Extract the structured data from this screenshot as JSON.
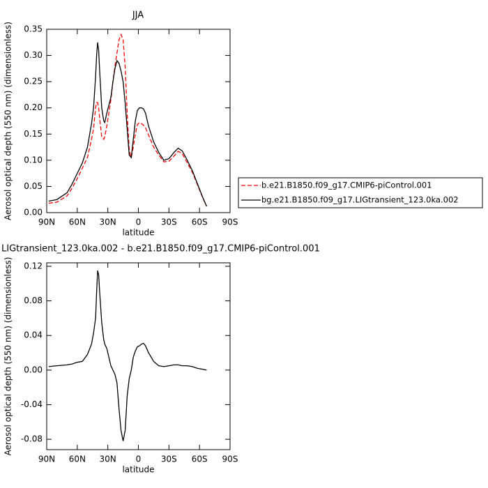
{
  "chart_data": [
    {
      "type": "line",
      "title": "JJA",
      "xlabel": "latitude",
      "ylabel": "Aerosol optical depth (550 nm) (dimensionless)",
      "x": [
        88,
        80,
        70,
        65,
        60,
        55,
        50,
        46,
        44,
        42,
        41,
        40,
        39,
        38,
        36,
        34,
        33,
        31,
        29,
        27,
        25,
        23,
        21,
        19,
        17,
        15,
        13,
        11,
        9,
        7,
        5,
        3,
        1,
        -1,
        -3,
        -5,
        -7,
        -10,
        -15,
        -20,
        -25,
        -30,
        -35,
        -39,
        -43,
        -48,
        -53,
        -58,
        -63,
        -67
      ],
      "xlim": [
        90,
        -90
      ],
      "xticks": [
        {
          "value": 90,
          "label": "90N"
        },
        {
          "value": 60,
          "label": "60N"
        },
        {
          "value": 30,
          "label": "30N"
        },
        0,
        {
          "value": -30,
          "label": "30S"
        },
        {
          "value": -60,
          "label": "60S"
        },
        {
          "value": -90,
          "label": "90S"
        }
      ],
      "ylim": [
        0,
        0.35
      ],
      "yticks": [
        {
          "value": 0,
          "label": "0.00"
        },
        0.05,
        {
          "value": 0.1,
          "label": "0.10"
        },
        0.15,
        {
          "value": 0.2,
          "label": "0.20"
        },
        0.25,
        {
          "value": 0.3,
          "label": "0.30"
        },
        0.35
      ],
      "legend": "right",
      "series": [
        {
          "name": "b.e21.B1850.f09_g17.CMIP6-piControl.001",
          "color": "#ff0000",
          "dashed": true,
          "values": [
            0.018,
            0.02,
            0.032,
            0.047,
            0.065,
            0.085,
            0.105,
            0.14,
            0.16,
            0.2,
            0.21,
            0.21,
            0.2,
            0.18,
            0.145,
            0.14,
            0.145,
            0.165,
            0.19,
            0.215,
            0.25,
            0.28,
            0.305,
            0.33,
            0.34,
            0.33,
            0.28,
            0.19,
            0.12,
            0.105,
            0.125,
            0.15,
            0.168,
            0.172,
            0.17,
            0.167,
            0.162,
            0.148,
            0.125,
            0.11,
            0.097,
            0.098,
            0.108,
            0.117,
            0.113,
            0.095,
            0.077,
            0.053,
            0.029,
            0.012
          ]
        },
        {
          "name": "bg.e21.B1850.f09_g17.LIGtransient_123.0ka.002",
          "color": "#000000",
          "dashed": false,
          "values": [
            0.022,
            0.025,
            0.038,
            0.055,
            0.075,
            0.095,
            0.125,
            0.17,
            0.2,
            0.26,
            0.3,
            0.325,
            0.31,
            0.27,
            0.2,
            0.175,
            0.172,
            0.19,
            0.205,
            0.22,
            0.25,
            0.275,
            0.29,
            0.285,
            0.27,
            0.25,
            0.21,
            0.16,
            0.11,
            0.105,
            0.14,
            0.175,
            0.195,
            0.2,
            0.2,
            0.198,
            0.19,
            0.165,
            0.135,
            0.115,
            0.1,
            0.103,
            0.115,
            0.123,
            0.118,
            0.1,
            0.08,
            0.055,
            0.03,
            0.012
          ]
        }
      ]
    },
    {
      "type": "line",
      "title": "LIGtransient_123.0ka.002 - b.e21.B1850.f09_g17.CMIP6-piControl.001",
      "xlabel": "latitude",
      "ylabel": "Aerosol optical depth (550 nm) (dimensionless)",
      "x": [
        88,
        80,
        70,
        65,
        60,
        55,
        50,
        46,
        44,
        42,
        41,
        40,
        39,
        38,
        36,
        34,
        33,
        31,
        29,
        27,
        25,
        23,
        21,
        19,
        17,
        15,
        13,
        11,
        9,
        7,
        5,
        3,
        1,
        -1,
        -3,
        -5,
        -7,
        -10,
        -15,
        -20,
        -25,
        -30,
        -35,
        -39,
        -43,
        -48,
        -53,
        -58,
        -63,
        -67
      ],
      "xlim": [
        90,
        -90
      ],
      "xticks": [
        {
          "value": 90,
          "label": "90N"
        },
        {
          "value": 60,
          "label": "60N"
        },
        {
          "value": 30,
          "label": "30N"
        },
        0,
        {
          "value": -30,
          "label": "30S"
        },
        {
          "value": -60,
          "label": "60S"
        },
        {
          "value": -90,
          "label": "90S"
        }
      ],
      "ylim": [
        -0.092,
        0.124
      ],
      "yticks": [
        -0.08,
        -0.04,
        {
          "value": 0,
          "label": "0.00"
        },
        0.04,
        0.08,
        0.12
      ],
      "series": [
        {
          "color": "#000000",
          "dashed": false,
          "values": [
            0.004,
            0.005,
            0.006,
            0.007,
            0.009,
            0.01,
            0.018,
            0.03,
            0.043,
            0.06,
            0.09,
            0.115,
            0.11,
            0.09,
            0.055,
            0.035,
            0.03,
            0.025,
            0.015,
            0.005,
            0.0,
            -0.005,
            -0.015,
            -0.045,
            -0.07,
            -0.082,
            -0.07,
            -0.03,
            -0.01,
            0.0,
            0.015,
            0.022,
            0.027,
            0.028,
            0.03,
            0.031,
            0.028,
            0.02,
            0.01,
            0.005,
            0.004,
            0.005,
            0.006,
            0.006,
            0.005,
            0.005,
            0.004,
            0.002,
            0.001,
            0.0
          ]
        }
      ]
    }
  ]
}
